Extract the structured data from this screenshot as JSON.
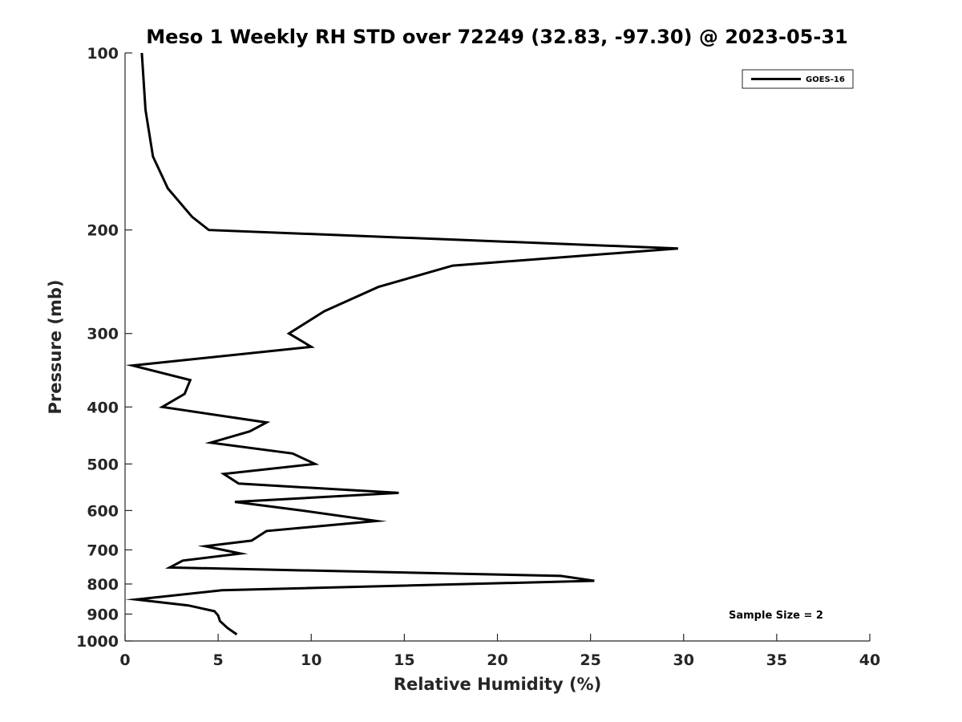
{
  "chart_data": {
    "type": "line",
    "title": "Meso 1 Weekly RH STD over 72249 (32.83, -97.30) @ 2023-05-31",
    "xlabel": "Relative Humidity (%)",
    "ylabel": "Pressure (mb)",
    "xlim": [
      0,
      40
    ],
    "ylim": [
      100,
      1000
    ],
    "y_scale": "log",
    "y_reversed": true,
    "xticks": [
      0,
      5,
      10,
      15,
      20,
      25,
      30,
      35,
      40
    ],
    "yticks": [
      100,
      200,
      300,
      400,
      500,
      600,
      700,
      800,
      900,
      1000
    ],
    "grid": false,
    "legend_position": "top-right",
    "series": [
      {
        "name": "GOES-16",
        "color": "#000000",
        "points": [
          [
            0.9,
            100
          ],
          [
            1.1,
            125
          ],
          [
            1.5,
            150
          ],
          [
            2.3,
            170
          ],
          [
            3.6,
            190
          ],
          [
            4.5,
            200
          ],
          [
            29.7,
            215
          ],
          [
            17.6,
            230
          ],
          [
            13.6,
            250
          ],
          [
            10.7,
            275
          ],
          [
            8.8,
            300
          ],
          [
            10.0,
            316
          ],
          [
            0.4,
            340
          ],
          [
            3.5,
            360
          ],
          [
            3.2,
            380
          ],
          [
            2.0,
            400
          ],
          [
            7.6,
            425
          ],
          [
            6.7,
            440
          ],
          [
            4.6,
            460
          ],
          [
            9.0,
            480
          ],
          [
            10.2,
            500
          ],
          [
            5.3,
            520
          ],
          [
            6.1,
            540
          ],
          [
            14.7,
            560
          ],
          [
            5.9,
            580
          ],
          [
            9.5,
            600
          ],
          [
            13.5,
            625
          ],
          [
            7.6,
            650
          ],
          [
            6.8,
            675
          ],
          [
            4.3,
            690
          ],
          [
            6.2,
            710
          ],
          [
            3.1,
            730
          ],
          [
            2.4,
            750
          ],
          [
            23.4,
            775
          ],
          [
            25.2,
            790
          ],
          [
            5.2,
            820
          ],
          [
            0.6,
            850
          ],
          [
            3.4,
            870
          ],
          [
            4.8,
            890
          ],
          [
            5.0,
            905
          ],
          [
            5.1,
            925
          ],
          [
            5.5,
            950
          ],
          [
            6.0,
            975
          ]
        ]
      }
    ],
    "annotations": [
      "Sample Size = 2"
    ]
  }
}
